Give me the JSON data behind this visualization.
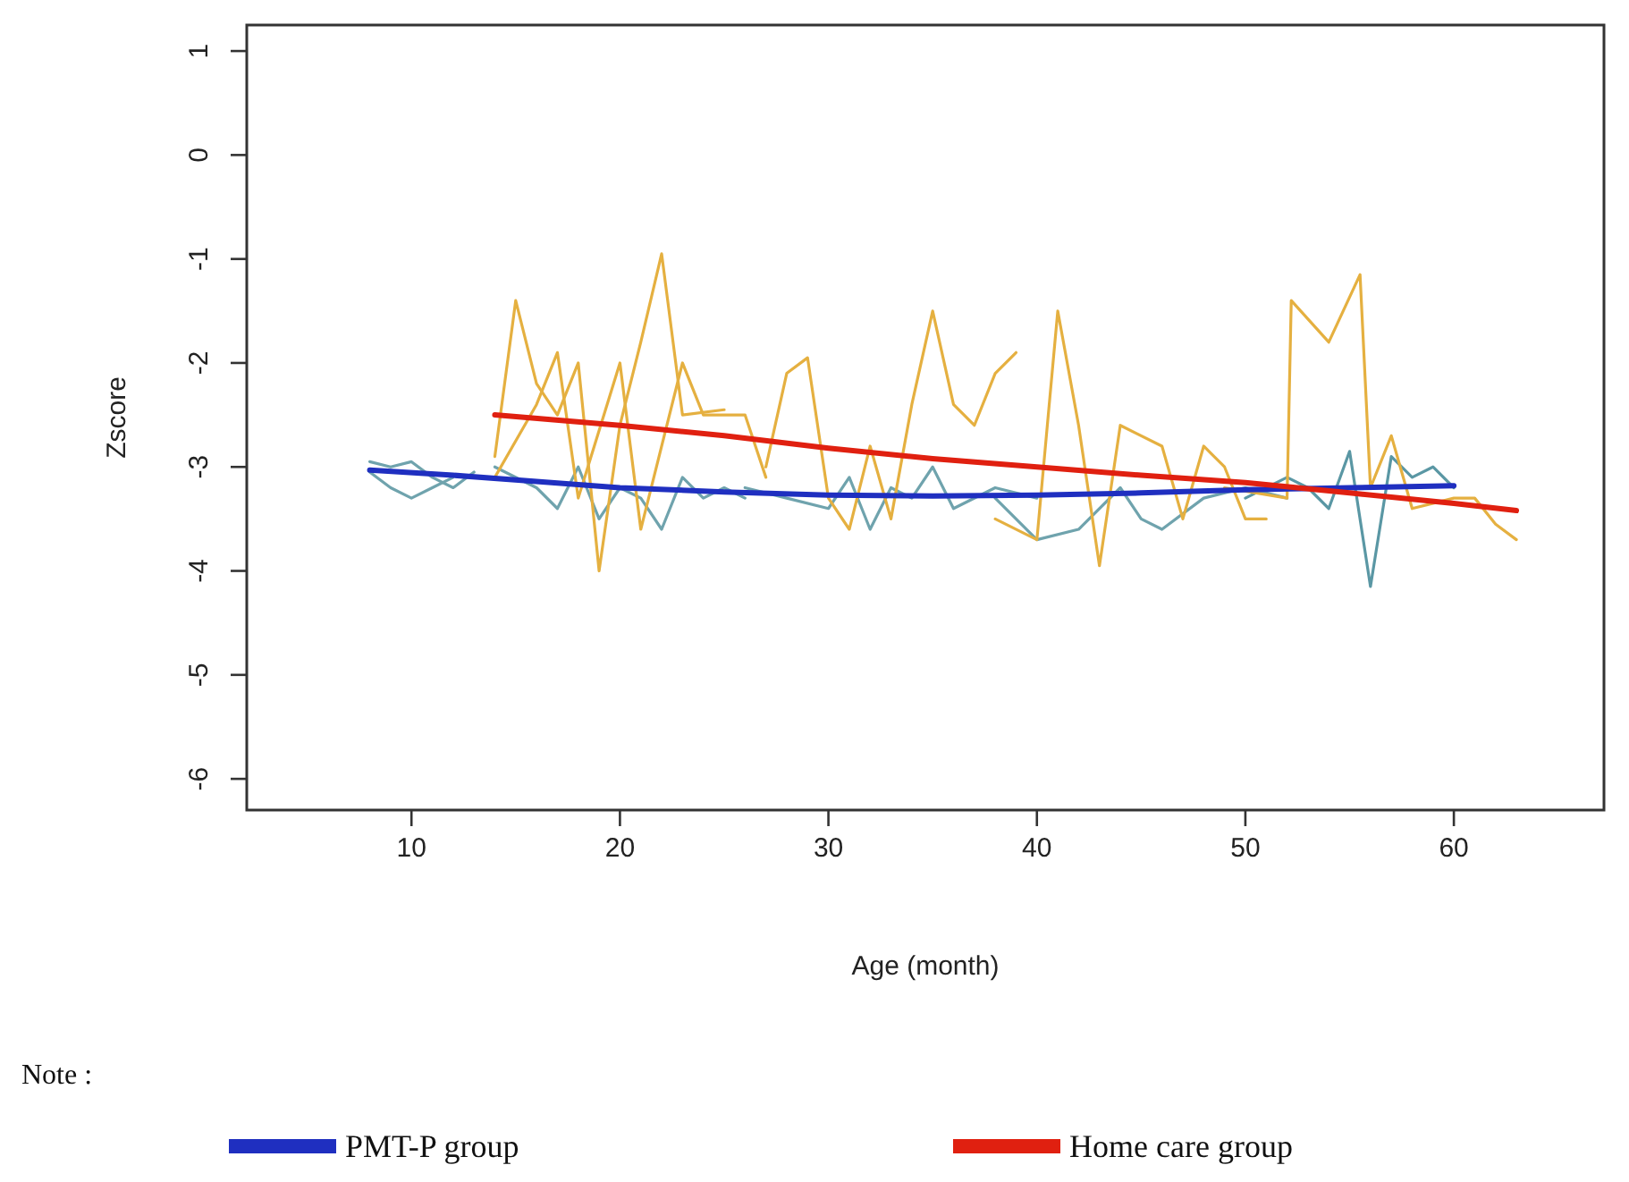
{
  "chart_data": {
    "type": "line",
    "xlabel": "Age (month)",
    "ylabel": "Zscore",
    "xlim": [
      2.1,
      67.2
    ],
    "ylim": [
      -6.3,
      1.25
    ],
    "xticks": [
      10,
      20,
      30,
      40,
      50,
      60
    ],
    "yticks": [
      1,
      0,
      -1,
      -2,
      -3,
      -4,
      -5,
      -6
    ],
    "grid": false,
    "legend": "bottom",
    "marker": "none",
    "line_style": "solid",
    "annotations": [
      "Note :"
    ],
    "series": [
      {
        "color": "#6fa3ad",
        "x": [
          8,
          9,
          10,
          11,
          12,
          13
        ],
        "values": [
          -2.95,
          -3.0,
          -2.95,
          -3.1,
          -3.2,
          -3.05
        ]
      },
      {
        "color": "#6fa3ad",
        "x": [
          8,
          9,
          10,
          11,
          12
        ],
        "values": [
          -3.05,
          -3.2,
          -3.3,
          -3.2,
          -3.1
        ]
      },
      {
        "color": "#6fa3ad",
        "x": [
          14,
          16,
          17,
          18,
          19,
          20,
          21,
          22,
          23,
          24,
          25,
          26
        ],
        "values": [
          -3.0,
          -3.2,
          -3.4,
          -3.0,
          -3.5,
          -3.2,
          -3.3,
          -3.6,
          -3.1,
          -3.3,
          -3.2,
          -3.3
        ]
      },
      {
        "color": "#6fa3ad",
        "x": [
          26,
          28,
          30,
          31,
          32,
          33,
          34,
          35,
          36,
          38,
          40
        ],
        "values": [
          -3.2,
          -3.3,
          -3.4,
          -3.1,
          -3.6,
          -3.2,
          -3.3,
          -3.0,
          -3.4,
          -3.2,
          -3.3
        ]
      },
      {
        "color": "#6fa3ad",
        "x": [
          38,
          40,
          42,
          44,
          45,
          46,
          48,
          50,
          52
        ],
        "values": [
          -3.3,
          -3.7,
          -3.6,
          -3.2,
          -3.5,
          -3.6,
          -3.3,
          -3.2,
          -3.3
        ]
      },
      {
        "color": "#5a97a4",
        "x": [
          50,
          52,
          53,
          54,
          55,
          56,
          57,
          58,
          59,
          60
        ],
        "values": [
          -3.3,
          -3.1,
          -3.2,
          -3.4,
          -2.85,
          -4.15,
          -2.9,
          -3.1,
          -3.0,
          -3.2
        ]
      },
      {
        "color": "#e5b040",
        "x": [
          14,
          15,
          16,
          17,
          18,
          19,
          20,
          21,
          22,
          23,
          25
        ],
        "values": [
          -2.9,
          -1.4,
          -2.2,
          -2.5,
          -2.0,
          -4.0,
          -2.6,
          -1.8,
          -0.95,
          -2.5,
          -2.45
        ]
      },
      {
        "color": "#e5b040",
        "x": [
          14,
          16,
          17,
          18,
          20,
          21,
          23,
          24,
          26,
          27
        ],
        "values": [
          -3.1,
          -2.4,
          -1.9,
          -3.3,
          -2.0,
          -3.6,
          -2.0,
          -2.5,
          -2.5,
          -3.1
        ]
      },
      {
        "color": "#e5b040",
        "x": [
          27,
          28,
          29,
          30,
          31,
          32,
          33,
          34,
          35,
          36,
          37,
          38,
          39
        ],
        "values": [
          -3.0,
          -2.1,
          -1.95,
          -3.3,
          -3.6,
          -2.8,
          -3.5,
          -2.4,
          -1.5,
          -2.4,
          -2.6,
          -2.1,
          -1.9
        ]
      },
      {
        "color": "#e5b040",
        "x": [
          38,
          40,
          41,
          42,
          43,
          44,
          46,
          47,
          48,
          49,
          50,
          51
        ],
        "values": [
          -3.5,
          -3.7,
          -1.5,
          -2.6,
          -3.95,
          -2.6,
          -2.8,
          -3.5,
          -2.8,
          -3.0,
          -3.5,
          -3.5
        ]
      },
      {
        "color": "#e5b040",
        "x": [
          49,
          52,
          52.2,
          54,
          55.5,
          56,
          57,
          58,
          60,
          61,
          62,
          63
        ],
        "values": [
          -3.2,
          -3.3,
          -1.4,
          -1.8,
          -1.15,
          -3.2,
          -2.7,
          -3.4,
          -3.3,
          -3.3,
          -3.55,
          -3.7
        ]
      },
      {
        "name": "PMT-P group",
        "color": "#1f2fc0",
        "x": [
          8,
          12,
          16,
          20,
          25,
          30,
          35,
          40,
          45,
          50,
          55,
          60
        ],
        "values": [
          -3.03,
          -3.08,
          -3.14,
          -3.2,
          -3.24,
          -3.27,
          -3.28,
          -3.27,
          -3.25,
          -3.22,
          -3.2,
          -3.18
        ]
      },
      {
        "name": "Home care group",
        "color": "#e02010",
        "x": [
          14,
          20,
          25,
          30,
          35,
          40,
          45,
          50,
          55,
          60,
          63
        ],
        "values": [
          -2.5,
          -2.6,
          -2.7,
          -2.82,
          -2.92,
          -3.0,
          -3.08,
          -3.15,
          -3.25,
          -3.35,
          -3.42
        ]
      }
    ]
  }
}
